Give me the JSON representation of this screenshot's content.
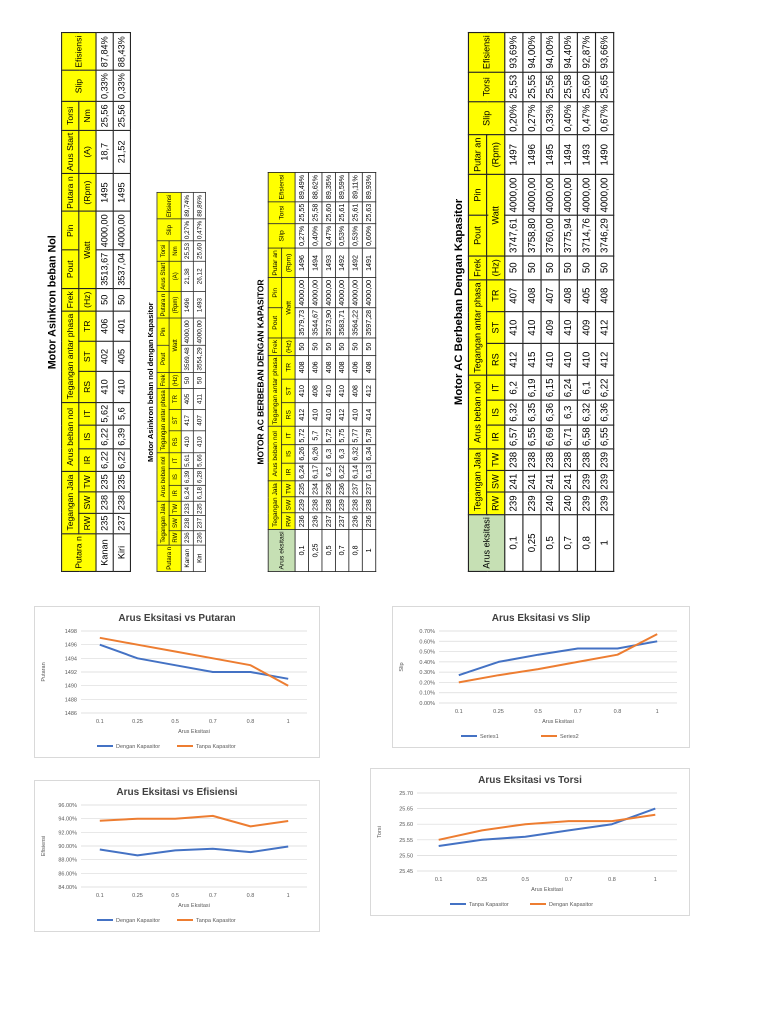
{
  "tables": [
    {
      "id": "t1",
      "title": "Motor Asinkron beban Nol",
      "header_rows": [
        [
          {
            "text": "Putara n",
            "rowspan": 3
          },
          {
            "text": "Tegangan Jala",
            "colspan": 3,
            "rowspan": 2
          },
          {
            "text": "Arus beban nol",
            "colspan": 3,
            "rowspan": 2
          },
          {
            "text": "Tegangan antar phasa",
            "colspan": 3,
            "rowspan": 2
          },
          {
            "text": "Frek",
            "rowspan": 2
          },
          {
            "text": "Pout",
            "rowspan": 2
          },
          {
            "text": "Pin",
            "rowspan": 2
          },
          {
            "text": "Putara n",
            "rowspan": 2
          },
          {
            "text": "Arus Start",
            "rowspan": 2
          },
          {
            "text": "Torsi",
            "rowspan": 2
          },
          {
            "text": "Slip",
            "rowspan": 3
          },
          {
            "text": "Efisiensi",
            "rowspan": 3
          }
        ],
        [],
        [
          {
            "text": "RW"
          },
          {
            "text": "SW"
          },
          {
            "text": "TW"
          },
          {
            "text": "IR"
          },
          {
            "text": "IS"
          },
          {
            "text": "IT"
          },
          {
            "text": "RS"
          },
          {
            "text": "ST"
          },
          {
            "text": "TR"
          },
          {
            "text": "(Hz)"
          },
          {
            "text": "Watt",
            "colspan": 2
          },
          {
            "text": "(Rpm)"
          },
          {
            "text": "(A)"
          },
          {
            "text": "Nm"
          }
        ]
      ],
      "rows": [
        [
          "Kanan",
          "235",
          "238",
          "235",
          "6,22",
          "6,22",
          "5,62",
          "410",
          "402",
          "406",
          "50",
          "3513,67",
          "4000,00",
          "1495",
          "18,7",
          "25,56",
          "0,33%",
          "87,84%"
        ],
        [
          "Kiri",
          "237",
          "238",
          "235",
          "6,22",
          "6,39",
          "5,6",
          "410",
          "405",
          "401",
          "50",
          "3537,04",
          "4000,00",
          "1495",
          "21,52",
          "25,56",
          "0,33%",
          "88,43%"
        ]
      ]
    },
    {
      "id": "t2",
      "title": "Motor Asinkron beban nol dengan Kapasitor",
      "header_rows": [
        [
          {
            "text": "Putara n",
            "rowspan": 3
          },
          {
            "text": "Tegangan Jala",
            "colspan": 3,
            "rowspan": 2
          },
          {
            "text": "Arus beban nol",
            "colspan": 3,
            "rowspan": 2
          },
          {
            "text": "Tegangan antar phasa",
            "colspan": 3,
            "rowspan": 2
          },
          {
            "text": "Frek",
            "rowspan": 2
          },
          {
            "text": "Pout",
            "rowspan": 2
          },
          {
            "text": "Pin",
            "rowspan": 2
          },
          {
            "text": "Putara n",
            "rowspan": 2
          },
          {
            "text": "Arus Start",
            "rowspan": 2
          },
          {
            "text": "Torsi",
            "rowspan": 2
          },
          {
            "text": "Slip",
            "rowspan": 3
          },
          {
            "text": "Efisiensi",
            "rowspan": 3
          }
        ],
        [],
        [
          {
            "text": "RW"
          },
          {
            "text": "SW"
          },
          {
            "text": "TW"
          },
          {
            "text": "IR"
          },
          {
            "text": "IS"
          },
          {
            "text": "IT"
          },
          {
            "text": "RS"
          },
          {
            "text": "ST"
          },
          {
            "text": "TR"
          },
          {
            "text": "(Hz)"
          },
          {
            "text": "Watt",
            "colspan": 2
          },
          {
            "text": "(Rpm)"
          },
          {
            "text": "(A)"
          },
          {
            "text": "Nm"
          }
        ]
      ],
      "rows": [
        [
          "Kanan",
          "236",
          "238",
          "233",
          "6,24",
          "6,39",
          "5,61",
          "410",
          "417",
          "405",
          "50",
          "3569,48",
          "4000,00",
          "1496",
          "21,38",
          "25,53",
          "0,27%",
          "89,74%"
        ],
        [
          "Kiri",
          "236",
          "237",
          "235",
          "6,18",
          "6,28",
          "5,66",
          "410",
          "407",
          "411",
          "50",
          "3554,29",
          "4000,00",
          "1493",
          "26,12",
          "25,60",
          "0,47%",
          "88,86%"
        ]
      ]
    },
    {
      "id": "t3",
      "title": "MOTOR AC BERBEBAN DENGAN KAPASITOR",
      "header_rows": [
        [
          {
            "text": "Arus eksitasi",
            "rowspan": 3
          },
          {
            "text": "Tegangan Jala",
            "colspan": 3
          },
          {
            "text": "Arus beban nol",
            "colspan": 3
          },
          {
            "text": "Tegangan antar phasa",
            "colspan": 3
          },
          {
            "text": "Frek",
            "rowspan": 2
          },
          {
            "text": "Pout",
            "rowspan": 2
          },
          {
            "text": "Pin",
            "rowspan": 2
          },
          {
            "text": "Putar an",
            "rowspan": 2
          },
          {
            "text": "Slip",
            "rowspan": 3
          },
          {
            "text": "Torsi",
            "rowspan": 3
          },
          {
            "text": "Efisiensi",
            "rowspan": 3
          }
        ],
        [
          {
            "text": "RW",
            "rowspan": 2
          },
          {
            "text": "SW",
            "rowspan": 2
          },
          {
            "text": "TW",
            "rowspan": 2
          },
          {
            "text": "IR",
            "rowspan": 2
          },
          {
            "text": "IS",
            "rowspan": 2
          },
          {
            "text": "IT",
            "rowspan": 2
          },
          {
            "text": "RS",
            "rowspan": 2
          },
          {
            "text": "ST",
            "rowspan": 2
          },
          {
            "text": "TR",
            "rowspan": 2
          }
        ],
        [
          {
            "text": "(Hz)"
          },
          {
            "text": "Watt",
            "colspan": 2
          },
          {
            "text": "(Rpm)"
          }
        ]
      ],
      "rows": [
        [
          "0,1",
          "236",
          "239",
          "235",
          "6,24",
          "6,26",
          "5,72",
          "412",
          "410",
          "408",
          "50",
          "3579,73",
          "4000,00",
          "1496",
          "0,27%",
          "25,55",
          "89,49%"
        ],
        [
          "0,25",
          "236",
          "238",
          "234",
          "6,17",
          "6,26",
          "5,7",
          "410",
          "408",
          "406",
          "50",
          "3544,67",
          "4000,00",
          "1494",
          "0,40%",
          "25,58",
          "88,62%"
        ],
        [
          "0,5",
          "237",
          "238",
          "236",
          "6,2",
          "6,3",
          "5,72",
          "410",
          "410",
          "408",
          "50",
          "3573,90",
          "4000,00",
          "1493",
          "0,47%",
          "25,60",
          "89,35%"
        ],
        [
          "0,7",
          "237",
          "239",
          "236",
          "6,22",
          "6,3",
          "5,75",
          "412",
          "410",
          "408",
          "50",
          "3583,71",
          "4000,00",
          "1492",
          "0,53%",
          "25,61",
          "89,59%"
        ],
        [
          "0,8",
          "236",
          "238",
          "237",
          "6,14",
          "6,32",
          "5,77",
          "410",
          "408",
          "406",
          "50",
          "3564,22",
          "4000,00",
          "1492",
          "0,53%",
          "25,61",
          "89,11%"
        ],
        [
          "1",
          "236",
          "238",
          "237",
          "6,13",
          "6,34",
          "5,78",
          "414",
          "412",
          "408",
          "50",
          "3597,28",
          "4000,00",
          "1491",
          "0,60%",
          "25,63",
          "89,93%"
        ]
      ]
    },
    {
      "id": "t4",
      "title": "Motor AC Berbeban Dengan Kapasitor",
      "header_rows": [
        [
          {
            "text": "Arus eksitasi",
            "rowspan": 3
          },
          {
            "text": "Tegangan Jala",
            "colspan": 3,
            "rowspan": 2
          },
          {
            "text": "Arus beban nol",
            "colspan": 3,
            "rowspan": 2
          },
          {
            "text": "Tegangan antar phasa",
            "colspan": 3
          },
          {
            "text": "Frek",
            "rowspan": 2
          },
          {
            "text": "Pout",
            "rowspan": 2
          },
          {
            "text": "Pin",
            "rowspan": 2
          },
          {
            "text": "Putar an",
            "rowspan": 2
          },
          {
            "text": "Slip",
            "rowspan": 3
          },
          {
            "text": "Torsi",
            "rowspan": 3
          },
          {
            "text": "Efisiensi",
            "rowspan": 3
          }
        ],
        [
          {
            "text": "RS",
            "rowspan": 2
          },
          {
            "text": "ST",
            "rowspan": 2
          },
          {
            "text": "TR",
            "rowspan": 2
          }
        ],
        [
          {
            "text": "RW"
          },
          {
            "text": "SW"
          },
          {
            "text": "TW"
          },
          {
            "text": "IR"
          },
          {
            "text": "IS"
          },
          {
            "text": "IT"
          },
          {
            "text": "(Hz)"
          },
          {
            "text": "Watt",
            "colspan": 2
          },
          {
            "text": "(Rpm)"
          }
        ]
      ],
      "rows": [
        [
          "0,1",
          "239",
          "241",
          "238",
          "6,57",
          "6,32",
          "6,2",
          "412",
          "410",
          "407",
          "50",
          "3747,61",
          "4000,00",
          "1497",
          "0,20%",
          "25,53",
          "93,69%"
        ],
        [
          "0,25",
          "239",
          "241",
          "238",
          "6,55",
          "6,35",
          "6,19",
          "415",
          "410",
          "408",
          "50",
          "3758,80",
          "4000,00",
          "1496",
          "0,27%",
          "25,55",
          "94,00%"
        ],
        [
          "0,5",
          "240",
          "241",
          "238",
          "6,69",
          "6,36",
          "6,15",
          "410",
          "409",
          "407",
          "50",
          "3760,00",
          "4000,00",
          "1495",
          "0,33%",
          "25,56",
          "94,00%"
        ],
        [
          "0,7",
          "240",
          "241",
          "238",
          "6,71",
          "6,3",
          "6,24",
          "410",
          "410",
          "408",
          "50",
          "3775,94",
          "4000,00",
          "1494",
          "0,40%",
          "25,58",
          "94,40%"
        ],
        [
          "0,8",
          "239",
          "239",
          "238",
          "6,58",
          "6,32",
          "6,1",
          "410",
          "409",
          "405",
          "50",
          "3714,76",
          "4000,00",
          "1493",
          "0,47%",
          "25,60",
          "92,87%"
        ],
        [
          "1",
          "239",
          "239",
          "239",
          "6,55",
          "6,36",
          "6,22",
          "412",
          "412",
          "408",
          "50",
          "3746,29",
          "4000,00",
          "1490",
          "0,67%",
          "25,65",
          "93,66%"
        ]
      ]
    }
  ],
  "chart_data": [
    {
      "id": "c1",
      "type": "line",
      "title": "Arus Eksitasi vs Putaran",
      "xlabel": "Arus Eksitasi",
      "ylabel": "Putaran",
      "categories": [
        "0.1",
        "0.25",
        "0.5",
        "0.7",
        "0.8",
        "1"
      ],
      "ylim": [
        1486,
        1498
      ],
      "yticks": [
        "1486",
        "1488",
        "1490",
        "1492",
        "1494",
        "1496",
        "1498"
      ],
      "grid": true,
      "legend": "bottom",
      "series": [
        {
          "name": "Dengan Kapasitor",
          "color": "#4472c4",
          "values": [
            1496,
            1494,
            1493,
            1492,
            1492,
            1491
          ]
        },
        {
          "name": "Tanpa Kapasitor",
          "color": "#ed7d31",
          "values": [
            1497,
            1496,
            1495,
            1494,
            1493,
            1490
          ]
        }
      ]
    },
    {
      "id": "c2",
      "type": "line",
      "title": "Arus Eksitasi vs Slip",
      "xlabel": "Arus Eksitasi",
      "ylabel": "Slip",
      "categories": [
        "0.1",
        "0.25",
        "0.5",
        "0.7",
        "0.8",
        "1"
      ],
      "ylim": [
        0,
        0.7
      ],
      "yticks": [
        "0.00%",
        "0.10%",
        "0.20%",
        "0.30%",
        "0.40%",
        "0.50%",
        "0.60%",
        "0.70%"
      ],
      "grid": true,
      "legend": "bottom",
      "series": [
        {
          "name": "Series1",
          "color": "#4472c4",
          "values": [
            0.27,
            0.4,
            0.47,
            0.53,
            0.53,
            0.6
          ]
        },
        {
          "name": "Series2",
          "color": "#ed7d31",
          "values": [
            0.2,
            0.27,
            0.33,
            0.4,
            0.47,
            0.67
          ]
        }
      ]
    },
    {
      "id": "c3",
      "type": "line",
      "title": "Arus Eksitasi vs Efisiensi",
      "xlabel": "Arus Eksitasi",
      "ylabel": "Efisiensi",
      "categories": [
        "0.1",
        "0.25",
        "0.5",
        "0.7",
        "0.8",
        "1"
      ],
      "ylim": [
        84,
        96
      ],
      "yticks": [
        "84.00%",
        "86.00%",
        "88.00%",
        "90.00%",
        "92.00%",
        "94.00%",
        "96.00%"
      ],
      "grid": true,
      "legend": "bottom",
      "series": [
        {
          "name": "Dengan Kapasitor",
          "color": "#4472c4",
          "values": [
            89.49,
            88.62,
            89.35,
            89.59,
            89.11,
            89.93
          ]
        },
        {
          "name": "Tanpa Kapasitor",
          "color": "#ed7d31",
          "values": [
            93.69,
            94.0,
            94.0,
            94.4,
            92.87,
            93.66
          ]
        }
      ]
    },
    {
      "id": "c4",
      "type": "line",
      "title": "Arus Eksitasi vs Torsi",
      "xlabel": "Arus Eksitasi",
      "ylabel": "Torsi",
      "categories": [
        "0.1",
        "0.25",
        "0.5",
        "0.7",
        "0.8",
        "1"
      ],
      "ylim": [
        25.45,
        25.7
      ],
      "yticks": [
        "25.45",
        "25.50",
        "25.55",
        "25.60",
        "25.65",
        "25.70"
      ],
      "grid": true,
      "legend": "bottom",
      "series": [
        {
          "name": "Tanpa Kapasitor",
          "color": "#4472c4",
          "values": [
            25.53,
            25.55,
            25.56,
            25.58,
            25.6,
            25.65
          ]
        },
        {
          "name": "Dengan Kapasitor",
          "color": "#ed7d31",
          "values": [
            25.55,
            25.58,
            25.6,
            25.61,
            25.61,
            25.63
          ]
        }
      ]
    }
  ]
}
